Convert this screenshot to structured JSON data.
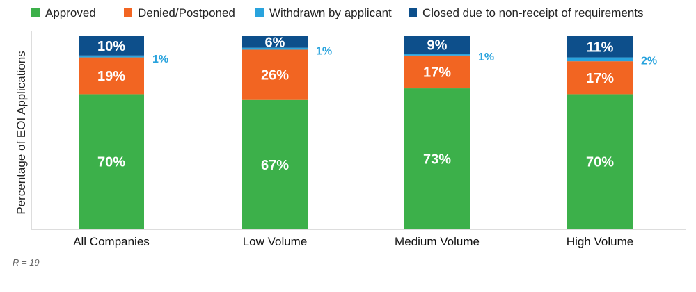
{
  "chart_data": {
    "type": "bar",
    "stacked": true,
    "categories": [
      "All Companies",
      "Low Volume",
      "Medium Volume",
      "High Volume"
    ],
    "series": [
      {
        "name": "Approved",
        "color": "#3cb04a",
        "values": [
          70,
          67,
          73,
          70
        ],
        "labels": [
          "70%",
          "67%",
          "73%",
          "70%"
        ]
      },
      {
        "name": "Denied/Postponed",
        "color": "#f26522",
        "values": [
          19,
          26,
          17,
          17
        ],
        "labels": [
          "19%",
          "26%",
          "17%",
          "17%"
        ]
      },
      {
        "name": "Withdrawn by applicant",
        "color": "#29a3dd",
        "values": [
          1,
          1,
          1,
          2
        ],
        "labels": [
          "1%",
          "1%",
          "1%",
          "2%"
        ]
      },
      {
        "name": "Closed due to non-receipt of requirements",
        "color": "#0d4f8b",
        "values": [
          10,
          6,
          9,
          11
        ],
        "labels": [
          "10%",
          "6%",
          "9%",
          "11%"
        ]
      }
    ],
    "ylabel": "Percentage of EOI Applications",
    "xlabel": "",
    "ylim": [
      0,
      100
    ],
    "legend_position": "top",
    "grid": false
  },
  "note": "R = 19"
}
